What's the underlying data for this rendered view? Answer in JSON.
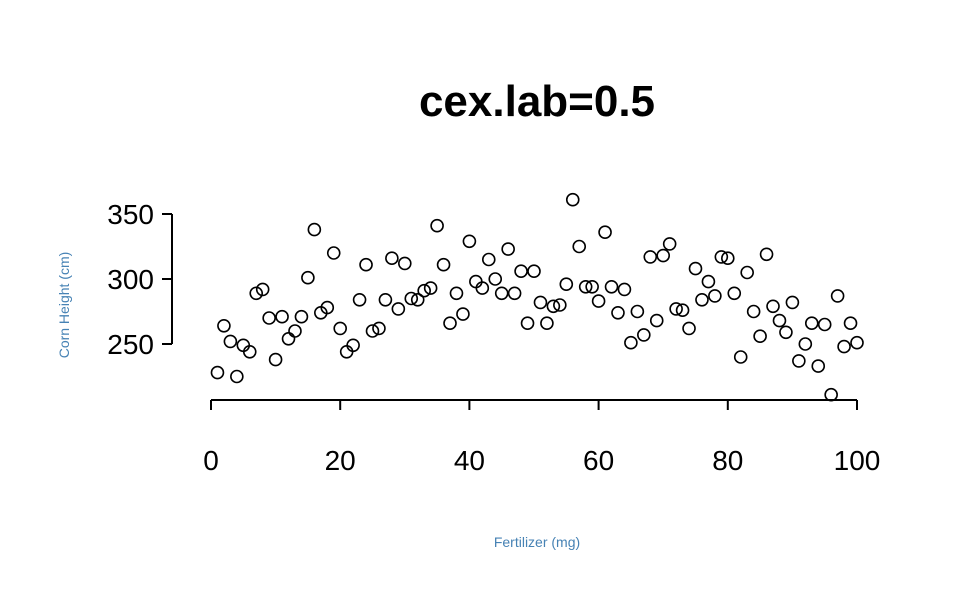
{
  "chart_data": {
    "type": "scatter",
    "title": "cex.lab=0.5",
    "xlabel": "Fertilizer (mg)",
    "ylabel": "Corn Height (cm)",
    "xlim": [
      0,
      100
    ],
    "ylim": [
      200,
      365
    ],
    "x_ticks": [
      0,
      20,
      40,
      60,
      80,
      100
    ],
    "y_ticks": [
      250,
      300,
      350
    ],
    "grid": false,
    "legend": "none",
    "colors": {
      "label": "#4682b4",
      "marker_stroke": "#000000",
      "text": "#000000"
    },
    "marker": "open-circle",
    "series": [
      {
        "x": [
          1,
          2,
          3,
          4,
          5,
          6,
          7,
          8,
          9,
          10,
          11,
          12,
          13,
          14,
          15,
          16,
          17,
          18,
          19,
          20,
          21,
          22,
          23,
          24,
          25,
          26,
          27,
          28,
          29,
          30,
          31,
          32,
          33,
          34,
          35,
          36,
          37,
          38,
          39,
          40,
          41,
          42,
          43,
          44,
          45,
          46,
          47,
          48,
          49,
          50,
          51,
          52,
          53,
          54,
          55,
          56,
          57,
          58,
          59,
          60,
          61,
          62,
          63,
          64,
          65,
          66,
          67,
          68,
          69,
          70,
          71,
          72,
          73,
          74,
          75,
          76,
          77,
          78,
          79,
          80,
          81,
          82,
          83,
          84,
          85,
          86,
          87,
          88,
          89,
          90,
          91,
          92,
          93,
          94,
          95,
          96,
          97,
          98,
          99,
          100
        ],
        "y": [
          228,
          264,
          252,
          225,
          249,
          244,
          289,
          292,
          270,
          238,
          271,
          254,
          260,
          271,
          301,
          338,
          274,
          278,
          320,
          262,
          244,
          249,
          284,
          311,
          260,
          262,
          284,
          316,
          277,
          312,
          285,
          284,
          291,
          293,
          341,
          311,
          266,
          289,
          273,
          329,
          298,
          293,
          315,
          300,
          289,
          323,
          289,
          306,
          266,
          306,
          282,
          266,
          279,
          280,
          296,
          361,
          325,
          294,
          294,
          283,
          336,
          294,
          274,
          292,
          251,
          275,
          257,
          317,
          268,
          318,
          327,
          277,
          276,
          262,
          308,
          284,
          298,
          287,
          317,
          316,
          289,
          240,
          305,
          275,
          256,
          319,
          279,
          268,
          259,
          282,
          237,
          250,
          266,
          233,
          265,
          211,
          287,
          248,
          266,
          251
        ]
      }
    ]
  }
}
